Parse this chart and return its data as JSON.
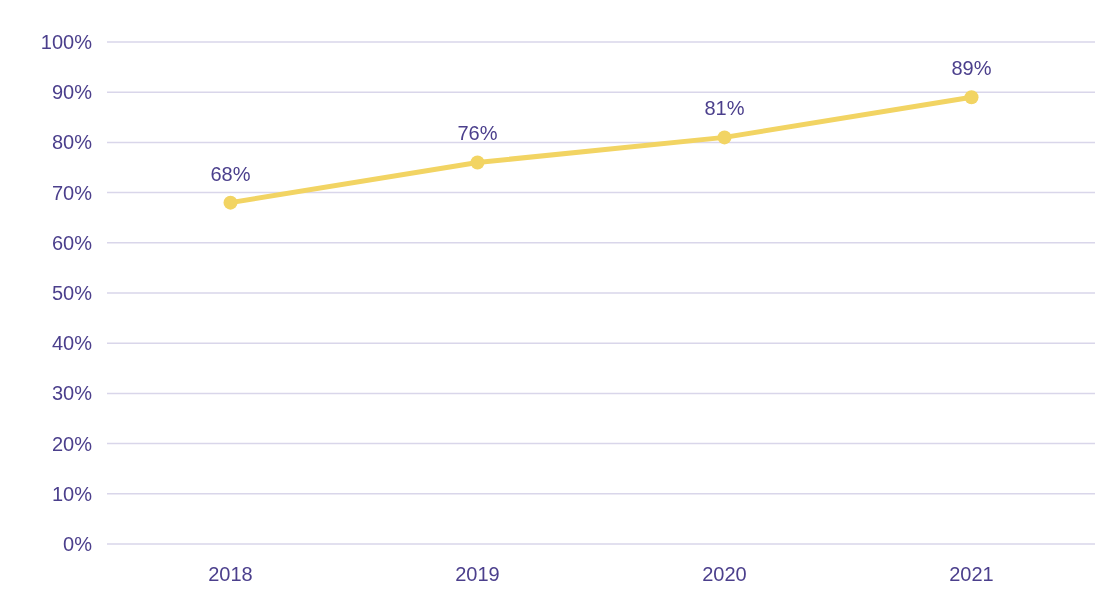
{
  "chart_data": {
    "type": "line",
    "categories": [
      "2018",
      "2019",
      "2020",
      "2021"
    ],
    "series": [
      {
        "color": "#f2d463",
        "values": [
          68,
          76,
          81,
          89
        ],
        "value_labels": [
          "68%",
          "76%",
          "81%",
          "89%"
        ]
      }
    ],
    "ylim": [
      0,
      100
    ],
    "yticks": [
      {
        "value": 0,
        "label": "0%"
      },
      {
        "value": 10,
        "label": "10%"
      },
      {
        "value": 20,
        "label": "20%"
      },
      {
        "value": 30,
        "label": "30%"
      },
      {
        "value": 40,
        "label": "40%"
      },
      {
        "value": 50,
        "label": "50%"
      },
      {
        "value": 60,
        "label": "60%"
      },
      {
        "value": 70,
        "label": "70%"
      },
      {
        "value": 80,
        "label": "80%"
      },
      {
        "value": 90,
        "label": "90%"
      },
      {
        "value": 100,
        "label": "100%"
      }
    ],
    "grid": "y",
    "marker": "circle",
    "line_style": "solid"
  }
}
